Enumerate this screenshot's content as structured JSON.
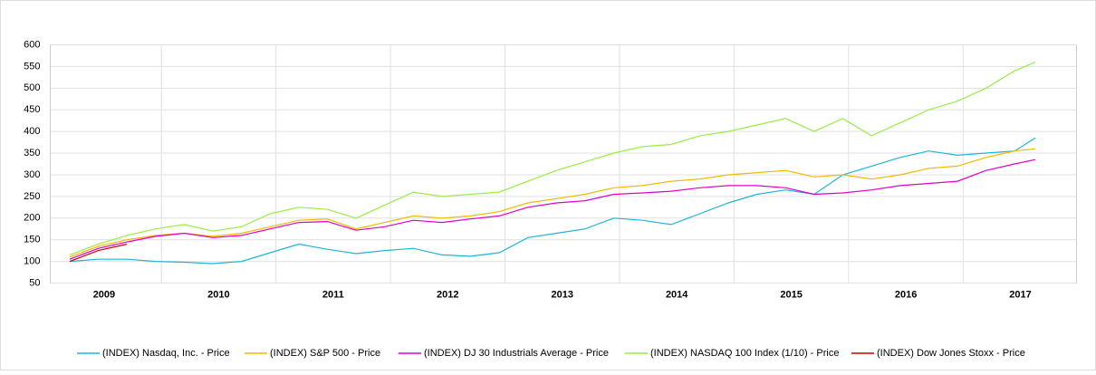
{
  "chart_data": {
    "type": "line",
    "x": [
      2009.2,
      2009.45,
      2009.7,
      2009.95,
      2010.2,
      2010.45,
      2010.7,
      2010.95,
      2011.2,
      2011.45,
      2011.7,
      2011.95,
      2012.2,
      2012.45,
      2012.7,
      2012.95,
      2013.2,
      2013.45,
      2013.7,
      2013.95,
      2014.2,
      2014.45,
      2014.7,
      2014.95,
      2015.2,
      2015.45,
      2015.7,
      2015.95,
      2016.2,
      2016.45,
      2016.7,
      2016.95,
      2017.2,
      2017.45,
      2017.63
    ],
    "series": [
      {
        "name": "(INDEX) Nasdaq, Inc. - Price",
        "color": "#1fb5d8",
        "values": [
          100,
          105,
          105,
          100,
          98,
          95,
          100,
          120,
          140,
          128,
          118,
          125,
          130,
          115,
          112,
          120,
          155,
          165,
          175,
          200,
          195,
          185,
          210,
          235,
          255,
          265,
          255,
          300,
          320,
          340,
          355,
          345,
          350,
          355,
          385
        ]
      },
      {
        "name": "(INDEX) S&P 500 - Price",
        "color": "#f5b800",
        "values": [
          110,
          135,
          150,
          160,
          165,
          158,
          165,
          180,
          195,
          198,
          175,
          190,
          205,
          200,
          205,
          215,
          235,
          245,
          255,
          270,
          275,
          285,
          290,
          300,
          305,
          310,
          295,
          300,
          290,
          300,
          315,
          320,
          340,
          355,
          360
        ]
      },
      {
        "name": "(INDEX) DJ 30 Industrials Average - Price",
        "color": "#e000c8",
        "values": [
          105,
          130,
          145,
          158,
          165,
          155,
          160,
          175,
          190,
          192,
          172,
          180,
          195,
          190,
          198,
          205,
          225,
          235,
          240,
          255,
          258,
          262,
          270,
          275,
          275,
          270,
          255,
          258,
          265,
          275,
          280,
          285,
          310,
          325,
          335
        ]
      },
      {
        "name": "(INDEX) NASDAQ 100 Index (1/10) - Price",
        "color": "#99ee44",
        "values": [
          115,
          140,
          160,
          175,
          185,
          170,
          180,
          210,
          225,
          220,
          200,
          230,
          260,
          250,
          255,
          260,
          285,
          310,
          330,
          350,
          365,
          370,
          390,
          400,
          415,
          430,
          400,
          430,
          390,
          420,
          450,
          470,
          500,
          540,
          560
        ]
      },
      {
        "name": "(INDEX) Dow Jones Stoxx - Price",
        "color": "#cc0000",
        "values": [
          100,
          125,
          140,
          null,
          null,
          null,
          null,
          null,
          null,
          null,
          null,
          null,
          null,
          null,
          null,
          null,
          null,
          null,
          null,
          null,
          null,
          null,
          null,
          null,
          null,
          null,
          null,
          null,
          null,
          null,
          null,
          null,
          null,
          null,
          null
        ]
      }
    ],
    "xlim": [
      2009.03,
      2017.99
    ],
    "xticks": [
      {
        "value": 2009.5,
        "label": "2009"
      },
      {
        "value": 2010.5,
        "label": "2010"
      },
      {
        "value": 2011.5,
        "label": "2011"
      },
      {
        "value": 2012.5,
        "label": "2012"
      },
      {
        "value": 2013.5,
        "label": "2013"
      },
      {
        "value": 2014.5,
        "label": "2014"
      },
      {
        "value": 2015.5,
        "label": "2015"
      },
      {
        "value": 2016.5,
        "label": "2016"
      },
      {
        "value": 2017.5,
        "label": "2017"
      }
    ],
    "ylim": [
      50,
      600
    ],
    "yticks": [
      50,
      100,
      150,
      200,
      250,
      300,
      350,
      400,
      450,
      500,
      550,
      600
    ],
    "grid": true,
    "legend": "bottom"
  }
}
